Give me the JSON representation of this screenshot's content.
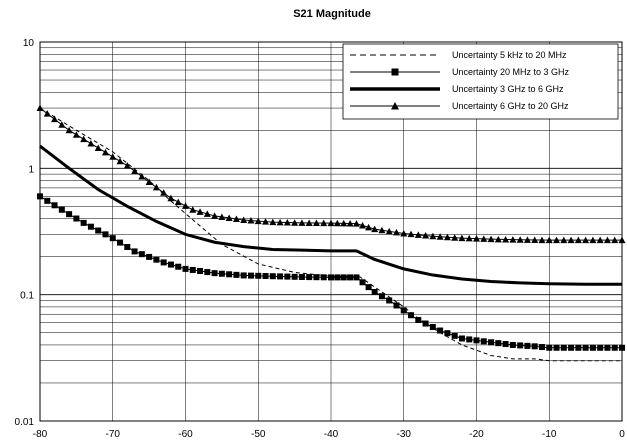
{
  "chart_data": {
    "type": "line",
    "title": "S21 Magnitude",
    "xlabel": "",
    "ylabel": "",
    "x_range": [
      -80,
      0
    ],
    "y_range": [
      0.01,
      10
    ],
    "y_scale": "log",
    "grid": true,
    "legend_position": "top-right",
    "x_ticks": [
      "-80",
      "-70",
      "-60",
      "-50",
      "-40",
      "-30",
      "-20",
      "-10",
      "0"
    ],
    "y_ticks": [
      "10",
      "1",
      "0.1",
      "0.01"
    ],
    "colors": {
      "series": "#000000",
      "grid": "#000000",
      "background": "#ffffff"
    },
    "series": [
      {
        "name": "Uncertainty 5 kHz to 20 MHz",
        "style": "dashed",
        "points": [
          [
            -80,
            3.0
          ],
          [
            -75,
            2.0
          ],
          [
            -70,
            1.35
          ],
          [
            -65,
            0.8
          ],
          [
            -62,
            0.55
          ],
          [
            -58,
            0.35
          ],
          [
            -55,
            0.25
          ],
          [
            -50,
            0.175
          ],
          [
            -45,
            0.15
          ],
          [
            -40,
            0.14
          ],
          [
            -36,
            0.138
          ],
          [
            -34,
            0.115
          ],
          [
            -30,
            0.08
          ],
          [
            -28,
            0.065
          ],
          [
            -25,
            0.05
          ],
          [
            -22,
            0.04
          ],
          [
            -18,
            0.033
          ],
          [
            -15,
            0.031
          ],
          [
            -12,
            0.031
          ],
          [
            -10,
            0.03
          ],
          [
            0,
            0.03
          ]
        ]
      },
      {
        "name": "Uncertainty 20 MHz to  3 GHz",
        "style": "square-markers",
        "points": [
          [
            -80,
            0.6
          ],
          [
            -77,
            0.47
          ],
          [
            -74,
            0.37
          ],
          [
            -70,
            0.28
          ],
          [
            -67,
            0.22
          ],
          [
            -63,
            0.18
          ],
          [
            -60,
            0.16
          ],
          [
            -56,
            0.148
          ],
          [
            -52,
            0.142
          ],
          [
            -48,
            0.14
          ],
          [
            -44,
            0.138
          ],
          [
            -40,
            0.137
          ],
          [
            -36.5,
            0.137
          ],
          [
            -34,
            0.105
          ],
          [
            -32,
            0.09
          ],
          [
            -30,
            0.075
          ],
          [
            -28,
            0.063
          ],
          [
            -25,
            0.052
          ],
          [
            -22,
            0.045
          ],
          [
            -18,
            0.042
          ],
          [
            -15,
            0.04
          ],
          [
            -12,
            0.039
          ],
          [
            -10,
            0.038
          ],
          [
            0,
            0.038
          ]
        ]
      },
      {
        "name": "Uncertainty 3 GHz to 6 GHz",
        "style": "thick-solid",
        "points": [
          [
            -80,
            1.5
          ],
          [
            -76,
            1.0
          ],
          [
            -72,
            0.68
          ],
          [
            -68,
            0.5
          ],
          [
            -64,
            0.38
          ],
          [
            -60,
            0.3
          ],
          [
            -56,
            0.26
          ],
          [
            -52,
            0.24
          ],
          [
            -48,
            0.228
          ],
          [
            -44,
            0.225
          ],
          [
            -40,
            0.222
          ],
          [
            -36.5,
            0.222
          ],
          [
            -34,
            0.19
          ],
          [
            -30,
            0.16
          ],
          [
            -26,
            0.143
          ],
          [
            -22,
            0.133
          ],
          [
            -18,
            0.127
          ],
          [
            -14,
            0.124
          ],
          [
            -10,
            0.122
          ],
          [
            -5,
            0.121
          ],
          [
            0,
            0.121
          ]
        ]
      },
      {
        "name": "Uncertainty 6 GHz to 20 GHz",
        "style": "triangle-markers",
        "points": [
          [
            -80,
            3.0
          ],
          [
            -76,
            2.0
          ],
          [
            -72,
            1.45
          ],
          [
            -68,
            1.05
          ],
          [
            -65,
            0.78
          ],
          [
            -62,
            0.58
          ],
          [
            -59,
            0.47
          ],
          [
            -56,
            0.42
          ],
          [
            -52,
            0.39
          ],
          [
            -48,
            0.375
          ],
          [
            -44,
            0.37
          ],
          [
            -40,
            0.368
          ],
          [
            -36.5,
            0.365
          ],
          [
            -34,
            0.33
          ],
          [
            -30,
            0.305
          ],
          [
            -26,
            0.29
          ],
          [
            -22,
            0.28
          ],
          [
            -18,
            0.275
          ],
          [
            -14,
            0.272
          ],
          [
            -10,
            0.27
          ],
          [
            0,
            0.27
          ]
        ]
      }
    ]
  }
}
